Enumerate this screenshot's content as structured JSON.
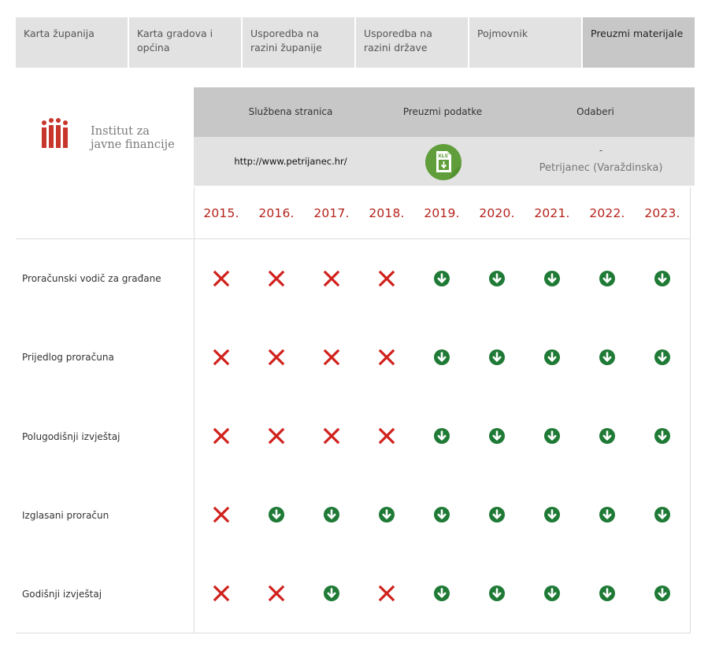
{
  "nav": {
    "tabs": [
      {
        "label": "Karta županija",
        "active": false
      },
      {
        "label": "Karta gradova i općina",
        "active": false
      },
      {
        "label": "Usporedba na razini županije",
        "active": false
      },
      {
        "label": "Usporedba na razini države",
        "active": false
      },
      {
        "label": "Pojmovnik",
        "active": false
      },
      {
        "label": "Preuzmi materijale",
        "active": true
      }
    ]
  },
  "logo": {
    "text": "Institut za\njavne financije",
    "color": "#c8352b"
  },
  "info": {
    "headers": {
      "official_site": "Službena stranica",
      "download_data": "Preuzmi podatke",
      "select": "Odaberi"
    },
    "website": "http://www.petrijanec.hr/",
    "download_icon": "xls-file-download-icon",
    "select_dash": "-",
    "selected_municipality": "Petrijanec (Varaždinska)"
  },
  "years": [
    "2015.",
    "2016.",
    "2017.",
    "2018.",
    "2019.",
    "2020.",
    "2021.",
    "2022.",
    "2023."
  ],
  "documents": [
    {
      "label": "Proračunski vodič za građane",
      "available": [
        false,
        false,
        false,
        false,
        true,
        true,
        true,
        true,
        true
      ]
    },
    {
      "label": "Prijedlog proračuna",
      "available": [
        false,
        false,
        false,
        false,
        true,
        true,
        true,
        true,
        true
      ]
    },
    {
      "label": "Polugodišnji izvještaj",
      "available": [
        false,
        false,
        false,
        false,
        true,
        true,
        true,
        true,
        true
      ]
    },
    {
      "label": "Izglasani proračun",
      "available": [
        false,
        true,
        true,
        true,
        true,
        true,
        true,
        true,
        true
      ]
    },
    {
      "label": "Godišnji izvještaj",
      "available": [
        false,
        false,
        true,
        false,
        true,
        true,
        true,
        true,
        true
      ]
    }
  ],
  "icons": {
    "available": "download-circle-icon",
    "unavailable": "cross-icon"
  },
  "colors": {
    "download_green": "#1f7a36",
    "cross_red": "#d0211c",
    "year_red": "#b5221b",
    "xls_green": "#5f9e3a"
  }
}
